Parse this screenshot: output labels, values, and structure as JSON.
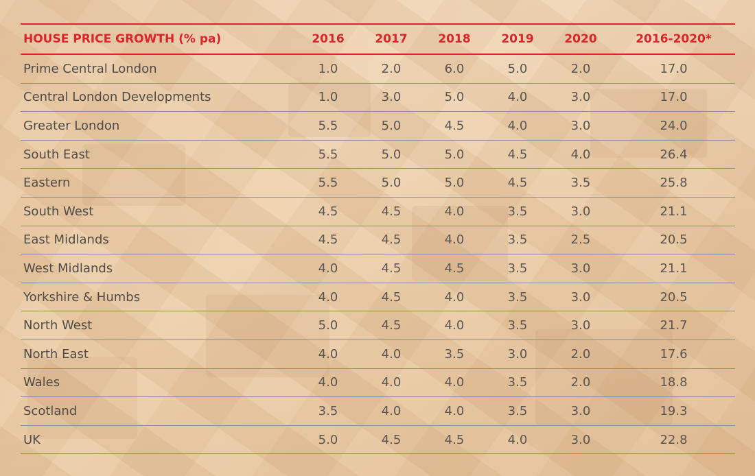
{
  "table": {
    "headers": [
      "HOUSE PRICE GROWTH (% pa)",
      "2016",
      "2017",
      "2018",
      "2019",
      "2020",
      "2016-2020*"
    ],
    "rows": [
      {
        "region": "Prime Central London",
        "values": [
          "1.0",
          "2.0",
          "6.0",
          "5.0",
          "2.0",
          "17.0"
        ]
      },
      {
        "region": "Central London Developments",
        "values": [
          "1.0",
          "3.0",
          "5.0",
          "4.0",
          "3.0",
          "17.0"
        ]
      },
      {
        "region": "Greater London",
        "values": [
          "5.5",
          "5.0",
          "4.5",
          "4.0",
          "3.0",
          "24.0"
        ]
      },
      {
        "region": "South East",
        "values": [
          "5.5",
          "5.0",
          "5.0",
          "4.5",
          "4.0",
          "26.4"
        ]
      },
      {
        "region": "Eastern",
        "values": [
          "5.5",
          "5.0",
          "5.0",
          "4.5",
          "3.5",
          "25.8"
        ]
      },
      {
        "region": "South West",
        "values": [
          "4.5",
          "4.5",
          "4.0",
          "3.5",
          "3.0",
          "21.1"
        ]
      },
      {
        "region": "East Midlands",
        "values": [
          "4.5",
          "4.5",
          "4.0",
          "3.5",
          "2.5",
          "20.5"
        ]
      },
      {
        "region": "West Midlands",
        "values": [
          "4.0",
          "4.5",
          "4.5",
          "3.5",
          "3.0",
          "21.1"
        ]
      },
      {
        "region": "Yorkshire & Humbs",
        "values": [
          "4.0",
          "4.5",
          "4.0",
          "3.5",
          "3.0",
          "20.5"
        ]
      },
      {
        "region": "North West",
        "values": [
          "5.0",
          "4.5",
          "4.0",
          "3.5",
          "3.0",
          "21.7"
        ]
      },
      {
        "region": "North East",
        "values": [
          "4.0",
          "4.0",
          "3.5",
          "3.0",
          "2.0",
          "17.6"
        ]
      },
      {
        "region": "Wales",
        "values": [
          "4.0",
          "4.0",
          "4.0",
          "3.5",
          "2.0",
          "18.8"
        ]
      },
      {
        "region": "Scotland",
        "values": [
          "3.5",
          "4.0",
          "4.0",
          "3.5",
          "3.0",
          "19.3"
        ]
      },
      {
        "region": "UK",
        "values": [
          "5.0",
          "4.5",
          "4.5",
          "4.0",
          "3.0",
          "22.8"
        ]
      }
    ]
  },
  "colors": {
    "header_red": "#d7262c",
    "body_text": "#5a5552",
    "row_rule": "#8c8a88"
  }
}
